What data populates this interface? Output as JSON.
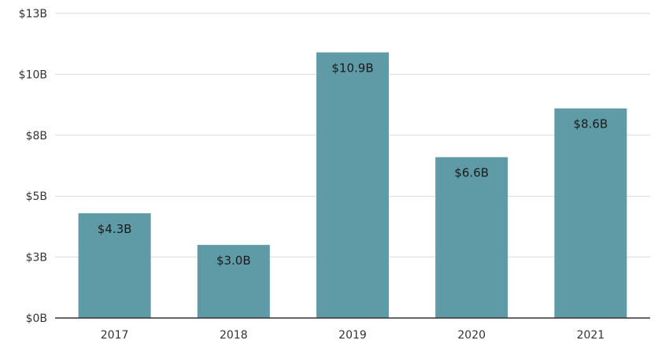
{
  "chart_data": {
    "type": "bar",
    "title": "",
    "xlabel": "",
    "ylabel": "",
    "categories": [
      "2017",
      "2018",
      "2019",
      "2020",
      "2021"
    ],
    "values": [
      4.3,
      3.0,
      10.9,
      6.6,
      8.6
    ],
    "data_labels": [
      "$4.3B",
      "$3.0B",
      "$10.9B",
      "$6.6B",
      "$8.6B"
    ],
    "ylim": [
      0,
      12.5
    ],
    "y_ticks": [
      {
        "value": 0,
        "label": "$0B"
      },
      {
        "value": 2.5,
        "label": "$3B"
      },
      {
        "value": 5,
        "label": "$5B"
      },
      {
        "value": 7.5,
        "label": "$8B"
      },
      {
        "value": 10,
        "label": "$10B"
      },
      {
        "value": 12.5,
        "label": "$13B"
      }
    ],
    "grid": true,
    "legend": "none",
    "bar_color": "#5f9ba6"
  }
}
